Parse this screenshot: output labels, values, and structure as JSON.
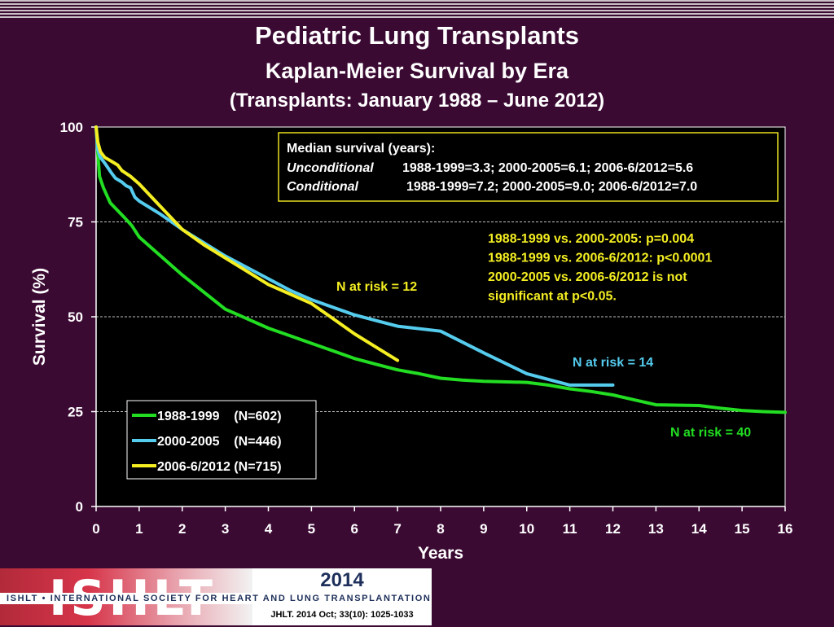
{
  "header": {
    "title": "Pediatric Lung Transplants",
    "subtitle": "Kaplan-Meier Survival by Era",
    "note": "(Transplants: January 1988 – June 2012)"
  },
  "chart_data": {
    "type": "line",
    "xlabel": "Years",
    "ylabel": "Survival (%)",
    "xlim": [
      0,
      16
    ],
    "ylim": [
      0,
      100
    ],
    "x_ticks": [
      "0",
      "1",
      "2",
      "3",
      "4",
      "5",
      "6",
      "7",
      "8",
      "9",
      "10",
      "11",
      "12",
      "13",
      "14",
      "15",
      "16"
    ],
    "y_ticks": [
      "0",
      "25",
      "50",
      "75",
      "100"
    ],
    "grid": "horizontal dashed at 25, 50, 75, 100",
    "legend_position": "bottom-left",
    "series": [
      {
        "name": "1988-1999    (N=602)",
        "color": "#22dd22",
        "points": [
          [
            0,
            100
          ],
          [
            0.04,
            93
          ],
          [
            0.08,
            87
          ],
          [
            0.17,
            84
          ],
          [
            0.25,
            82
          ],
          [
            0.33,
            80
          ],
          [
            0.5,
            78
          ],
          [
            0.67,
            76
          ],
          [
            0.83,
            74
          ],
          [
            1,
            71
          ],
          [
            1.5,
            66
          ],
          [
            2,
            61
          ],
          [
            2.5,
            56.5
          ],
          [
            3,
            52
          ],
          [
            3.5,
            49.5
          ],
          [
            4,
            47
          ],
          [
            4.5,
            45
          ],
          [
            5,
            43
          ],
          [
            5.5,
            41
          ],
          [
            6,
            39
          ],
          [
            6.5,
            37.5
          ],
          [
            7,
            36
          ],
          [
            7.5,
            35
          ],
          [
            8,
            33.8
          ],
          [
            8.5,
            33.3
          ],
          [
            9,
            33
          ],
          [
            10,
            32.7
          ],
          [
            10.5,
            32
          ],
          [
            11,
            31
          ],
          [
            11.5,
            30.3
          ],
          [
            12,
            29.4
          ],
          [
            12.5,
            28.1
          ],
          [
            13,
            26.8
          ],
          [
            14,
            26.6
          ],
          [
            14.5,
            25.9
          ],
          [
            15,
            25.3
          ],
          [
            15.5,
            25
          ],
          [
            16,
            24.8
          ]
        ]
      },
      {
        "name": "2000-2005    (N=446)",
        "color": "#55ccee",
        "points": [
          [
            0,
            100
          ],
          [
            0.04,
            94
          ],
          [
            0.1,
            92
          ],
          [
            0.2,
            90.5
          ],
          [
            0.35,
            88
          ],
          [
            0.45,
            86.5
          ],
          [
            0.6,
            85.5
          ],
          [
            0.7,
            84.5
          ],
          [
            0.8,
            84
          ],
          [
            0.9,
            81.5
          ],
          [
            1,
            80.5
          ],
          [
            1.5,
            77
          ],
          [
            2,
            73
          ],
          [
            2.5,
            69.5
          ],
          [
            3,
            66
          ],
          [
            3.5,
            63
          ],
          [
            4,
            60
          ],
          [
            4.5,
            57
          ],
          [
            5,
            54.5
          ],
          [
            5.5,
            52.5
          ],
          [
            6,
            50.5
          ],
          [
            6.5,
            49
          ],
          [
            7,
            47.5
          ],
          [
            8,
            46.2
          ],
          [
            9,
            40.5
          ],
          [
            10,
            35
          ],
          [
            11,
            32
          ],
          [
            12,
            32
          ]
        ]
      },
      {
        "name": "2006-6/2012 (N=715)",
        "color": "#f4ee22",
        "points": [
          [
            0,
            100
          ],
          [
            0.04,
            96
          ],
          [
            0.1,
            93.5
          ],
          [
            0.2,
            92
          ],
          [
            0.35,
            91
          ],
          [
            0.5,
            90
          ],
          [
            0.6,
            88.5
          ],
          [
            0.8,
            87
          ],
          [
            1,
            85
          ],
          [
            1.5,
            79
          ],
          [
            2,
            73
          ],
          [
            2.5,
            69
          ],
          [
            3,
            65.5
          ],
          [
            3.5,
            62
          ],
          [
            4,
            58.5
          ],
          [
            4.5,
            56
          ],
          [
            5,
            53.5
          ],
          [
            5.5,
            49.5
          ],
          [
            6,
            45.5
          ],
          [
            6.5,
            42
          ],
          [
            7,
            38.5
          ]
        ]
      }
    ],
    "annotations": {
      "median_box": {
        "title": "Median survival (years):",
        "row1_label": "Unconditional",
        "row1_values": "1988-1999=3.3;  2000-2005=6.1; 2006-6/2012=5.6",
        "row2_label": "Conditional",
        "row2_values": "1988-1999=7.2; 2000-2005=9.0; 2006-6/2012=7.0"
      },
      "pvalues": [
        "1988-1999 vs. 2000-2005: p=0.004",
        "1988-1999 vs. 2006-6/2012: p<0.0001",
        "2000-2005 vs. 2006-6/2012 is not",
        "significant at p<0.05."
      ],
      "n_at_risk_yellow": "N at risk = 12",
      "n_at_risk_blue": "N at risk = 14",
      "n_at_risk_green": "N at risk = 40"
    }
  },
  "footer": {
    "logo_word": "ISHLT",
    "society_name": "ISHLT • INTERNATIONAL SOCIETY FOR HEART AND LUNG TRANSPLANTATION",
    "year": "2014",
    "citation": "JHLT. 2014 Oct; 33(10): 1025-1033"
  }
}
